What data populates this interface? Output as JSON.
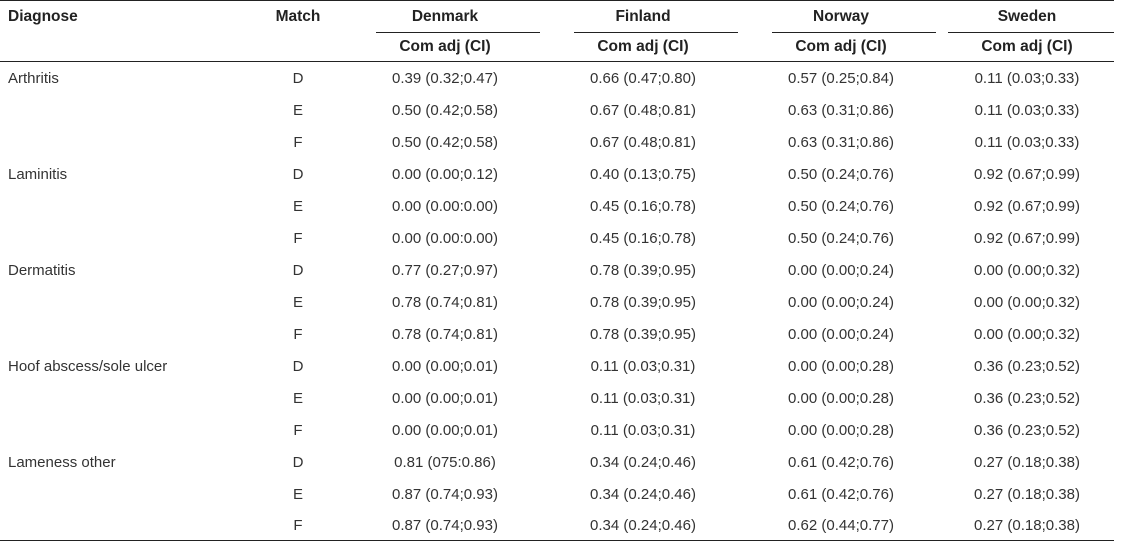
{
  "header": {
    "diagnose_label": "Diagnose",
    "match_label": "Match",
    "countries": [
      "Denmark",
      "Finland",
      "Norway",
      "Sweden"
    ],
    "sub_label": "Com adj (CI)"
  },
  "rows": [
    {
      "diagnose": "Arthritis",
      "match": "D",
      "values": [
        "0.39 (0.32;0.47)",
        "0.66 (0.47;0.80)",
        "0.57 (0.25;0.84)",
        "0.11 (0.03;0.33)"
      ]
    },
    {
      "diagnose": "",
      "match": "E",
      "values": [
        "0.50 (0.42;0.58)",
        "0.67 (0.48;0.81)",
        "0.63 (0.31;0.86)",
        "0.11 (0.03;0.33)"
      ]
    },
    {
      "diagnose": "",
      "match": "F",
      "values": [
        "0.50 (0.42;0.58)",
        "0.67 (0.48;0.81)",
        "0.63 (0.31;0.86)",
        "0.11 (0.03;0.33)"
      ]
    },
    {
      "diagnose": "Laminitis",
      "match": "D",
      "values": [
        "0.00 (0.00;0.12)",
        "0.40 (0.13;0.75)",
        "0.50 (0.24;0.76)",
        "0.92 (0.67;0.99)"
      ]
    },
    {
      "diagnose": "",
      "match": "E",
      "values": [
        "0.00 (0.00:0.00)",
        "0.45 (0.16;0.78)",
        "0.50 (0.24;0.76)",
        "0.92 (0.67;0.99)"
      ]
    },
    {
      "diagnose": "",
      "match": "F",
      "values": [
        "0.00 (0.00:0.00)",
        "0.45 (0.16;0.78)",
        "0.50 (0.24;0.76)",
        "0.92 (0.67;0.99)"
      ]
    },
    {
      "diagnose": "Dermatitis",
      "match": "D",
      "values": [
        "0.77 (0.27;0.97)",
        "0.78 (0.39;0.95)",
        "0.00 (0.00;0.24)",
        "0.00 (0.00;0.32)"
      ]
    },
    {
      "diagnose": "",
      "match": "E",
      "values": [
        "0.78 (0.74;0.81)",
        "0.78 (0.39;0.95)",
        "0.00 (0.00;0.24)",
        "0.00 (0.00;0.32)"
      ]
    },
    {
      "diagnose": "",
      "match": "F",
      "values": [
        "0.78 (0.74;0.81)",
        "0.78 (0.39;0.95)",
        "0.00 (0.00;0.24)",
        "0.00 (0.00;0.32)"
      ]
    },
    {
      "diagnose": "Hoof abscess/sole ulcer",
      "match": "D",
      "values": [
        "0.00 (0.00;0.01)",
        "0.11 (0.03;0.31)",
        "0.00 (0.00;0.28)",
        "0.36 (0.23;0.52)"
      ]
    },
    {
      "diagnose": "",
      "match": "E",
      "values": [
        "0.00 (0.00;0.01)",
        "0.11 (0.03;0.31)",
        "0.00 (0.00;0.28)",
        "0.36 (0.23;0.52)"
      ]
    },
    {
      "diagnose": "",
      "match": "F",
      "values": [
        "0.00 (0.00;0.01)",
        "0.11 (0.03;0.31)",
        "0.00 (0.00;0.28)",
        "0.36 (0.23;0.52)"
      ]
    },
    {
      "diagnose": "Lameness other",
      "match": "D",
      "values": [
        "0.81 (075:0.86)",
        "0.34 (0.24;0.46)",
        "0.61 (0.42;0.76)",
        "0.27 (0.18;0.38)"
      ]
    },
    {
      "diagnose": "",
      "match": "E",
      "values": [
        "0.87 (0.74;0.93)",
        "0.34 (0.24;0.46)",
        "0.61 (0.42;0.76)",
        "0.27 (0.18;0.38)"
      ]
    },
    {
      "diagnose": "",
      "match": "F",
      "values": [
        "0.87 (0.74;0.93)",
        "0.34 (0.24;0.46)",
        "0.62 (0.44;0.77)",
        "0.27 (0.18;0.38)"
      ]
    }
  ]
}
